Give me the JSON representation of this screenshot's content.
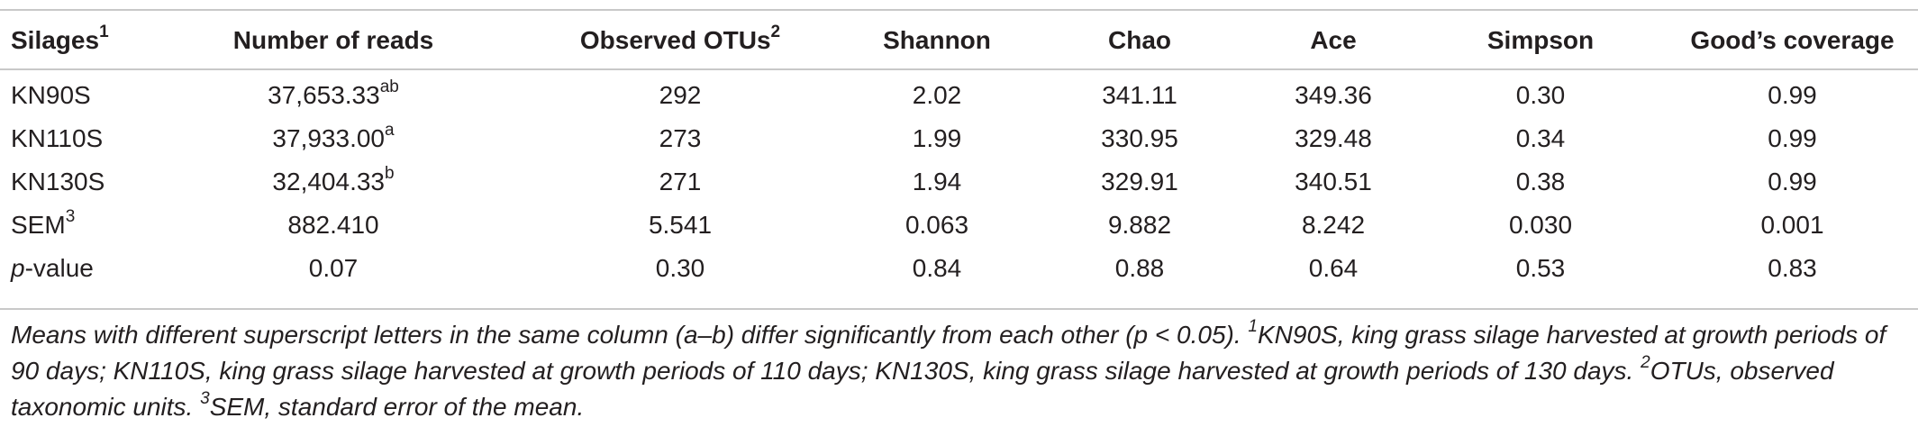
{
  "headers": [
    {
      "text": "Silages",
      "sup": "1"
    },
    {
      "text": "Number of reads",
      "sup": ""
    },
    {
      "text": "Observed OTUs",
      "sup": "2"
    },
    {
      "text": "Shannon",
      "sup": ""
    },
    {
      "text": "Chao",
      "sup": ""
    },
    {
      "text": "Ace",
      "sup": ""
    },
    {
      "text": "Simpson",
      "sup": ""
    },
    {
      "text": "Good’s coverage",
      "sup": ""
    }
  ],
  "rows": [
    {
      "label": "KN90S",
      "label_sup": "",
      "reads": "37,653.33",
      "reads_sup": "ab",
      "otus": "292",
      "shannon": "2.02",
      "chao": "341.11",
      "ace": "349.36",
      "simpson": "0.30",
      "goods": "0.99"
    },
    {
      "label": "KN110S",
      "label_sup": "",
      "reads": "37,933.00",
      "reads_sup": "a",
      "otus": "273",
      "shannon": "1.99",
      "chao": "330.95",
      "ace": "329.48",
      "simpson": "0.34",
      "goods": "0.99"
    },
    {
      "label": "KN130S",
      "label_sup": "",
      "reads": "32,404.33",
      "reads_sup": "b",
      "otus": "271",
      "shannon": "1.94",
      "chao": "329.91",
      "ace": "340.51",
      "simpson": "0.38",
      "goods": "0.99"
    },
    {
      "label": "SEM",
      "label_sup": "3",
      "reads": "882.410",
      "reads_sup": "",
      "otus": "5.541",
      "shannon": "0.063",
      "chao": "9.882",
      "ace": "8.242",
      "simpson": "0.030",
      "goods": "0.001"
    }
  ],
  "pvalue_row": {
    "label_italic": "p",
    "label_rest": "-value",
    "reads": "0.07",
    "otus": "0.30",
    "shannon": "0.84",
    "chao": "0.88",
    "ace": "0.64",
    "simpson": "0.53",
    "goods": "0.83"
  },
  "footnote": {
    "main": "Means with different superscript letters in the same column (a–b) differ significantly from each other (p < 0.05). ",
    "n1_sup": "1",
    "n1": "KN90S, king grass silage harvested at growth periods of 90 days; KN110S, king grass silage harvested at growth periods of 110 days; KN130S, king grass silage harvested at growth periods of 130 days. ",
    "n2_sup": "2",
    "n2": "OTUs, observed taxonomic units. ",
    "n3_sup": "3",
    "n3": "SEM, standard error of the mean."
  }
}
